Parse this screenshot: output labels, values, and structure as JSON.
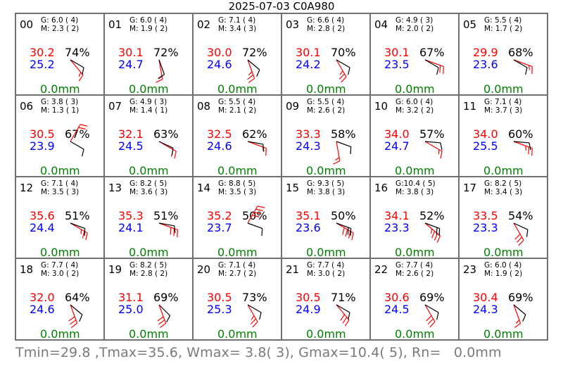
{
  "header": {
    "title": "2025-07-03 C0A980"
  },
  "colors": {
    "temp": "#ff0000",
    "dewpoint": "#0000ff",
    "rain": "#008000",
    "barb": "#ff0000",
    "text": "#000000",
    "footer": "#7a7a7a",
    "grid": "#707070"
  },
  "chart_data": {
    "type": "table",
    "title": "2025-07-03 C0A980",
    "hours": [
      {
        "hour": "00",
        "gust": "G: 6.0 ( 4)",
        "mean": "M: 2.3 ( 2)",
        "temp": "30.2",
        "dew": "25.2",
        "rh": "74%",
        "rain": "0.0mm"
      },
      {
        "hour": "01",
        "gust": "G: 6.0 ( 4)",
        "mean": "M: 1.9 ( 2)",
        "temp": "30.1",
        "dew": "24.7",
        "rh": "72%",
        "rain": "0.0mm"
      },
      {
        "hour": "02",
        "gust": "G: 7.1 ( 4)",
        "mean": "M: 3.4 ( 3)",
        "temp": "30.0",
        "dew": "24.6",
        "rh": "72%",
        "rain": "0.0mm"
      },
      {
        "hour": "03",
        "gust": "G: 6.6 ( 4)",
        "mean": "M: 2.8 ( 2)",
        "temp": "30.1",
        "dew": "24.2",
        "rh": "70%",
        "rain": "0.0mm"
      },
      {
        "hour": "04",
        "gust": "G: 4.9 ( 3)",
        "mean": "M: 2.0 ( 2)",
        "temp": "30.1",
        "dew": "23.5",
        "rh": "67%",
        "rain": "0.0mm"
      },
      {
        "hour": "05",
        "gust": "G: 5.5 ( 4)",
        "mean": "M: 1.7 ( 2)",
        "temp": "29.9",
        "dew": "23.6",
        "rh": "68%",
        "rain": "0.0mm"
      },
      {
        "hour": "06",
        "gust": "G: 3.8 ( 3)",
        "mean": "M: 1.3 ( 1)",
        "temp": "30.5",
        "dew": "23.9",
        "rh": "67%",
        "rain": "0.0mm"
      },
      {
        "hour": "07",
        "gust": "G: 4.9 ( 3)",
        "mean": "M: 1.4 ( 1)",
        "temp": "32.1",
        "dew": "24.5",
        "rh": "63%",
        "rain": "0.0mm"
      },
      {
        "hour": "08",
        "gust": "G: 5.5 ( 4)",
        "mean": "M: 2.1 ( 2)",
        "temp": "32.5",
        "dew": "24.6",
        "rh": "62%",
        "rain": "0.0mm"
      },
      {
        "hour": "09",
        "gust": "G: 5.5 ( 4)",
        "mean": "M: 2.6 ( 2)",
        "temp": "33.3",
        "dew": "24.3",
        "rh": "58%",
        "rain": "0.0mm"
      },
      {
        "hour": "10",
        "gust": "G: 6.0 ( 4)",
        "mean": "M: 3.2 ( 2)",
        "temp": "34.0",
        "dew": "24.7",
        "rh": "57%",
        "rain": "0.0mm"
      },
      {
        "hour": "11",
        "gust": "G: 7.1 ( 4)",
        "mean": "M: 3.7 ( 3)",
        "temp": "34.0",
        "dew": "25.5",
        "rh": "60%",
        "rain": "0.0mm"
      },
      {
        "hour": "12",
        "gust": "G: 7.1 ( 4)",
        "mean": "M: 3.5 ( 3)",
        "temp": "35.6",
        "dew": "24.4",
        "rh": "51%",
        "rain": "0.0mm"
      },
      {
        "hour": "13",
        "gust": "G: 8.2 ( 5)",
        "mean": "M: 3.6 ( 3)",
        "temp": "35.3",
        "dew": "24.1",
        "rh": "51%",
        "rain": "0.0mm"
      },
      {
        "hour": "14",
        "gust": "G: 8.8 ( 5)",
        "mean": "M: 3.5 ( 3)",
        "temp": "35.2",
        "dew": "23.7",
        "rh": "50%",
        "rain": "0.0mm"
      },
      {
        "hour": "15",
        "gust": "G: 9.3 ( 5)",
        "mean": "M: 3.8 ( 3)",
        "temp": "35.1",
        "dew": "23.6",
        "rh": "50%",
        "rain": "0.0mm"
      },
      {
        "hour": "16",
        "gust": "G:10.4 ( 5)",
        "mean": "M: 3.8 ( 3)",
        "temp": "34.1",
        "dew": "23.3",
        "rh": "52%",
        "rain": "0.0mm"
      },
      {
        "hour": "17",
        "gust": "G: 8.2 ( 5)",
        "mean": "M: 3.4 ( 3)",
        "temp": "33.5",
        "dew": "23.3",
        "rh": "54%",
        "rain": "0.0mm"
      },
      {
        "hour": "18",
        "gust": "G: 7.7 ( 4)",
        "mean": "M: 3.0 ( 2)",
        "temp": "32.0",
        "dew": "24.6",
        "rh": "64%",
        "rain": "0.0mm"
      },
      {
        "hour": "19",
        "gust": "G: 8.2 ( 5)",
        "mean": "M: 2.8 ( 2)",
        "temp": "31.1",
        "dew": "25.0",
        "rh": "69%",
        "rain": "0.0mm"
      },
      {
        "hour": "20",
        "gust": "G: 7.1 ( 4)",
        "mean": "M: 2.7 ( 2)",
        "temp": "30.5",
        "dew": "25.3",
        "rh": "73%",
        "rain": "0.0mm"
      },
      {
        "hour": "21",
        "gust": "G: 7.7 ( 4)",
        "mean": "M: 3.0 ( 2)",
        "temp": "30.5",
        "dew": "24.9",
        "rh": "71%",
        "rain": "0.0mm"
      },
      {
        "hour": "22",
        "gust": "G: 7.7 ( 4)",
        "mean": "M: 2.6 ( 2)",
        "temp": "30.6",
        "dew": "24.5",
        "rh": "69%",
        "rain": "0.0mm"
      },
      {
        "hour": "23",
        "gust": "G: 6.0 ( 4)",
        "mean": "M: 1.9 ( 2)",
        "temp": "30.4",
        "dew": "24.3",
        "rh": "69%",
        "rain": "0.0mm"
      }
    ],
    "wind_barbs": [
      {
        "mean_dir_deg": 300,
        "gust_dir_deg": 320
      },
      {
        "mean_dir_deg": 340,
        "gust_dir_deg": 350
      },
      {
        "mean_dir_deg": 310,
        "gust_dir_deg": 340
      },
      {
        "mean_dir_deg": 300,
        "gust_dir_deg": 330
      },
      {
        "mean_dir_deg": 300,
        "gust_dir_deg": 290
      },
      {
        "mean_dir_deg": 300,
        "gust_dir_deg": 290
      },
      {
        "mean_dir_deg": 300,
        "gust_dir_deg": 210
      },
      {
        "mean_dir_deg": 295,
        "gust_dir_deg": 300
      },
      {
        "mean_dir_deg": 280,
        "gust_dir_deg": 290
      },
      {
        "mean_dir_deg": 290,
        "gust_dir_deg": 350
      },
      {
        "mean_dir_deg": 275,
        "gust_dir_deg": 300
      },
      {
        "mean_dir_deg": 275,
        "gust_dir_deg": 290
      },
      {
        "mean_dir_deg": 290,
        "gust_dir_deg": 300
      },
      {
        "mean_dir_deg": 280,
        "gust_dir_deg": 290
      },
      {
        "mean_dir_deg": 290,
        "gust_dir_deg": 210
      },
      {
        "mean_dir_deg": 290,
        "gust_dir_deg": 300
      },
      {
        "mean_dir_deg": 290,
        "gust_dir_deg": 310
      },
      {
        "mean_dir_deg": 295,
        "gust_dir_deg": 330
      },
      {
        "mean_dir_deg": 310,
        "gust_dir_deg": 340
      },
      {
        "mean_dir_deg": 315,
        "gust_dir_deg": 340
      },
      {
        "mean_dir_deg": 300,
        "gust_dir_deg": 330
      },
      {
        "mean_dir_deg": 300,
        "gust_dir_deg": 320
      },
      {
        "mean_dir_deg": 300,
        "gust_dir_deg": 330
      },
      {
        "mean_dir_deg": 310,
        "gust_dir_deg": 340
      }
    ]
  },
  "footer": {
    "summary": "Tmin=29.8 ,Tmax=35.6, Wmax= 3.8( 3), Gmax=10.4( 5), Rn=   0.0mm"
  }
}
